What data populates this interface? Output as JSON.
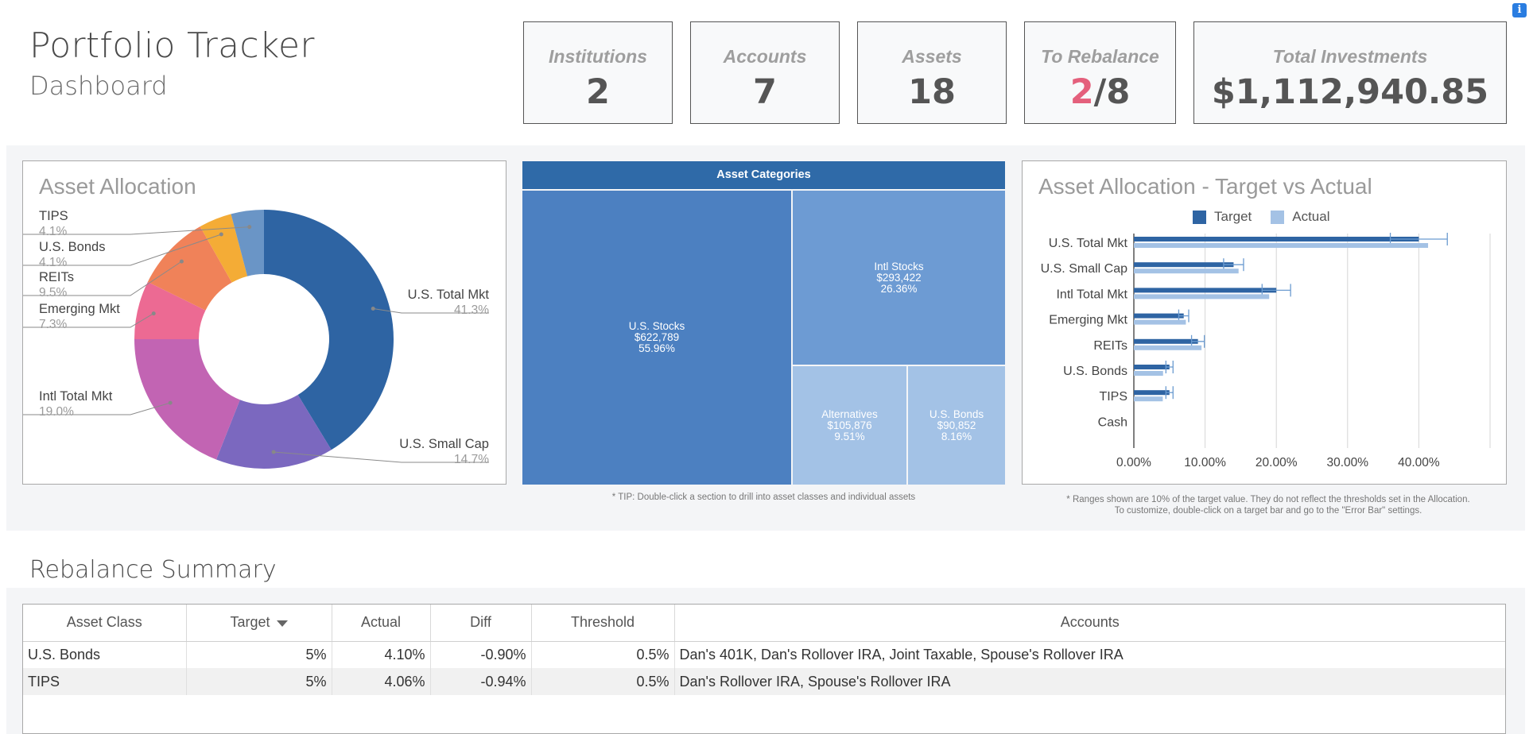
{
  "header": {
    "title": "Portfolio Tracker",
    "subtitle": "Dashboard"
  },
  "kpis": {
    "institutions": {
      "label": "Institutions",
      "value": "2"
    },
    "accounts": {
      "label": "Accounts",
      "value": "7"
    },
    "assets": {
      "label": "Assets",
      "value": "18"
    },
    "rebalance": {
      "label": "To Rebalance",
      "value_highlight": "2",
      "value_rest": "/8"
    },
    "total": {
      "label": "Total Investments",
      "value": "$1,112,940.85"
    }
  },
  "allocation_donut": {
    "title": "Asset Allocation",
    "chart_data": {
      "type": "pie",
      "slices": [
        {
          "label": "U.S. Total Mkt",
          "pct": "41.3%",
          "value": 41.3,
          "color": "#2e64a3"
        },
        {
          "label": "U.S. Small Cap",
          "pct": "14.7%",
          "value": 14.7,
          "color": "#7b68bf"
        },
        {
          "label": "Intl Total Mkt",
          "pct": "19.0%",
          "value": 19.0,
          "color": "#c264b3"
        },
        {
          "label": "Emerging Mkt",
          "pct": "7.3%",
          "value": 7.3,
          "color": "#ec6a93"
        },
        {
          "label": "REITs",
          "pct": "9.5%",
          "value": 9.5,
          "color": "#f08259"
        },
        {
          "label": "U.S. Bonds",
          "pct": "4.1%",
          "value": 4.1,
          "color": "#f4ac36"
        },
        {
          "label": "TIPS",
          "pct": "4.1%",
          "value": 4.1,
          "color": "#6a95c6"
        }
      ]
    }
  },
  "treemap": {
    "header": "Asset Categories",
    "cells": [
      {
        "label": "U.S. Stocks",
        "value": "$622,789",
        "pct": "55.96%",
        "color": "#4c80c1"
      },
      {
        "label": "Intl Stocks",
        "value": "$293,422",
        "pct": "26.36%",
        "color": "#6d9bd3"
      },
      {
        "label": "Alternatives",
        "value": "$105,876",
        "pct": "9.51%",
        "color": "#a3c2e6"
      },
      {
        "label": "U.S. Bonds",
        "value": "$90,852",
        "pct": "8.16%",
        "color": "#a3c2e6"
      }
    ],
    "tip": "* TIP: Double-click a section to drill into asset classes and individual assets"
  },
  "target_vs_actual": {
    "title": "Asset Allocation - Target vs Actual",
    "legend": {
      "target": "Target",
      "actual": "Actual"
    },
    "colors": {
      "target": "#2e64a3",
      "actual": "#a4c2e5",
      "error": "#6b9bd0"
    },
    "note_line1": "* Ranges shown are 10% of the target value. They do not reflect the thresholds set in the Allocation.",
    "note_line2": "To customize, double-click on a target bar and go to the \"Error Bar\" settings.",
    "chart_data": {
      "type": "bar",
      "orientation": "horizontal",
      "categories": [
        "U.S. Total Mkt",
        "U.S. Small Cap",
        "Intl Total Mkt",
        "Emerging Mkt",
        "REITs",
        "U.S. Bonds",
        "TIPS",
        "Cash"
      ],
      "series": [
        {
          "name": "Target",
          "values": [
            40,
            14,
            20,
            7,
            9,
            5,
            5,
            0
          ]
        },
        {
          "name": "Actual",
          "values": [
            41.3,
            14.7,
            19.0,
            7.3,
            9.5,
            4.1,
            4.06,
            0
          ]
        }
      ],
      "error_range_fraction": 0.1,
      "xlim": [
        0,
        50
      ],
      "ticks": [
        "0.00%",
        "10.00%",
        "20.00%",
        "30.00%",
        "40.00%"
      ],
      "grid": true,
      "legend_position": "top"
    }
  },
  "rebalance": {
    "title": "Rebalance Summary",
    "columns": [
      "Asset Class",
      "Target",
      "Actual",
      "Diff",
      "Threshold",
      "Accounts"
    ],
    "rows": [
      {
        "asset": "U.S. Bonds",
        "target": "5%",
        "actual": "4.10%",
        "diff": "-0.90%",
        "threshold": "0.5%",
        "accounts": "Dan's 401K, Dan's Rollover IRA, Joint Taxable, Spouse's Rollover IRA"
      },
      {
        "asset": "TIPS",
        "target": "5%",
        "actual": "4.06%",
        "diff": "-0.94%",
        "threshold": "0.5%",
        "accounts": "Dan's Rollover IRA, Spouse's Rollover IRA"
      }
    ]
  }
}
